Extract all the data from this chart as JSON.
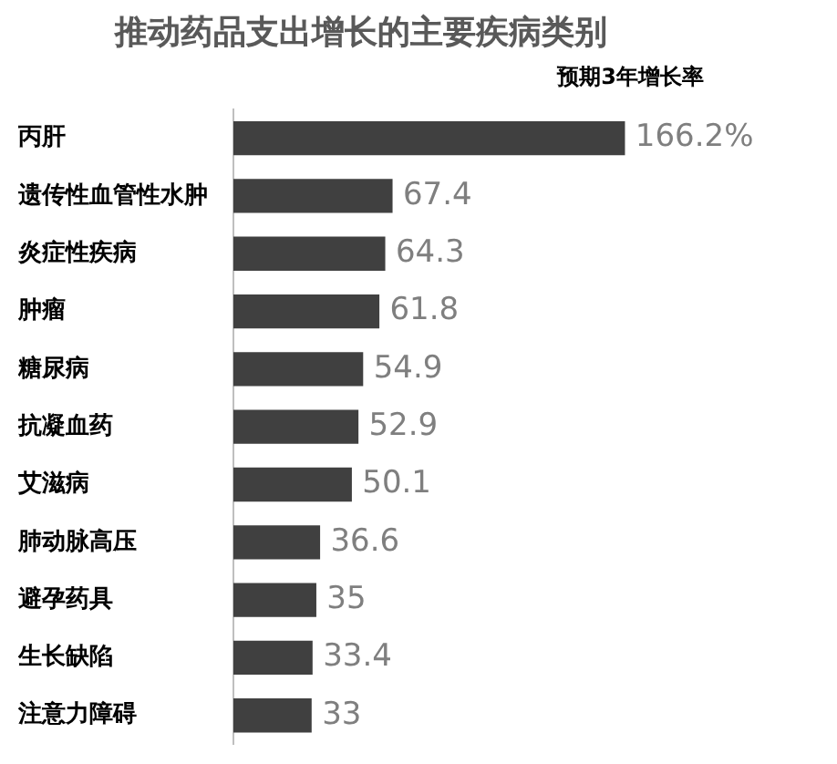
{
  "chart_data": {
    "type": "bar",
    "orientation": "horizontal",
    "title": "推动药品支出增长的主要疾病类别",
    "subtitle": "预期3年增长率",
    "categories": [
      "丙肝",
      "遗传性血管性水肿",
      "炎症性疾病",
      "肿瘤",
      "糖尿病",
      "抗凝血药",
      "艾滋病",
      "肺动脉高压",
      "避孕药具",
      "生长缺陷",
      "注意力障碍"
    ],
    "values": [
      166.2,
      67.4,
      64.3,
      61.8,
      54.9,
      52.9,
      50.1,
      36.6,
      35,
      33.4,
      33
    ],
    "value_labels": [
      "166.2%",
      "67.4",
      "64.3",
      "61.8",
      "54.9",
      "52.9",
      "50.1",
      "36.6",
      "35",
      "33.4",
      "33"
    ],
    "color": "#404040",
    "tick_labels": "y",
    "legend": false
  }
}
